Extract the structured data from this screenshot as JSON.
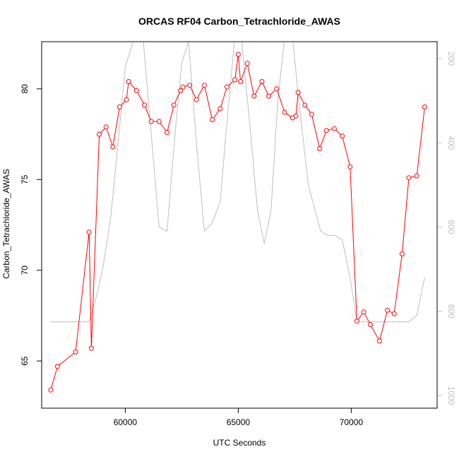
{
  "chart_data": {
    "type": "line",
    "title": "ORCAS RF04 Carbon_Tetrachloride_AWAS",
    "xlabel": "UTC Seconds",
    "ylabel": "Carbon_Tetrachloride_AWAS",
    "xlim": [
      56300,
      73800
    ],
    "ylim": [
      62.4,
      82.6
    ],
    "x_ticks": [
      60000,
      65000,
      70000
    ],
    "y_ticks": [
      65,
      70,
      75,
      80
    ],
    "y2_ticks": [
      200,
      400,
      600,
      800,
      1000
    ],
    "y2_range_top_to_bottom": [
      160,
      1030
    ],
    "grid": false,
    "legend": "none",
    "colors": {
      "primary": "#ff0000",
      "secondary": "#bebebe"
    },
    "series": [
      {
        "axis": "left",
        "color": "#ff0000",
        "marker": "open-circle",
        "x": [
          56700,
          57000,
          57800,
          58400,
          58500,
          58850,
          59150,
          59450,
          59750,
          60050,
          60150,
          60500,
          60850,
          61150,
          61500,
          61850,
          62150,
          62450,
          62550,
          62850,
          63150,
          63500,
          63850,
          64200,
          64500,
          64850,
          65000,
          65100,
          65400,
          65700,
          66050,
          66350,
          66700,
          67050,
          67400,
          67550,
          67650,
          67950,
          68250,
          68600,
          68900,
          69250,
          69600,
          69950,
          70250,
          70550,
          70850,
          71250,
          71600,
          71900,
          72250,
          72550,
          72900,
          73250
        ],
        "y": [
          63.4,
          64.7,
          65.5,
          72.1,
          65.7,
          77.5,
          77.9,
          76.8,
          79.0,
          79.4,
          80.4,
          79.9,
          79.1,
          78.2,
          78.2,
          77.6,
          79.1,
          79.9,
          80.1,
          80.2,
          79.4,
          80.2,
          78.3,
          78.9,
          80.1,
          80.5,
          81.9,
          80.4,
          81.4,
          79.6,
          80.4,
          79.6,
          80.0,
          78.7,
          78.4,
          78.5,
          79.8,
          79.1,
          78.6,
          76.7,
          77.7,
          77.8,
          77.4,
          75.7,
          67.2,
          67.7,
          67.0,
          66.1,
          67.8,
          67.6,
          70.9,
          75.1,
          75.2,
          79.0
        ]
      },
      {
        "axis": "right",
        "color": "#bebebe",
        "marker": "none",
        "x": [
          56700,
          58400,
          58700,
          59000,
          59350,
          59700,
          60000,
          60400,
          60800,
          61150,
          61500,
          61850,
          62200,
          62500,
          62800,
          63150,
          63500,
          63850,
          64200,
          64500,
          64850,
          65150,
          65500,
          65850,
          66150,
          66450,
          66750,
          67050,
          67400,
          67700,
          68100,
          68650,
          68950,
          69250,
          69600,
          69950,
          70250,
          70550,
          70850,
          71200,
          71600,
          71900,
          72250,
          72550,
          72900,
          73250
        ],
        "y": [
          825,
          825,
          770,
          700,
          580,
          390,
          220,
          150,
          160,
          380,
          600,
          610,
          380,
          210,
          160,
          400,
          610,
          590,
          540,
          350,
          150,
          160,
          350,
          560,
          640,
          560,
          300,
          150,
          150,
          310,
          500,
          610,
          620,
          620,
          630,
          720,
          825,
          825,
          825,
          825,
          825,
          825,
          825,
          825,
          810,
          720
        ]
      }
    ]
  }
}
